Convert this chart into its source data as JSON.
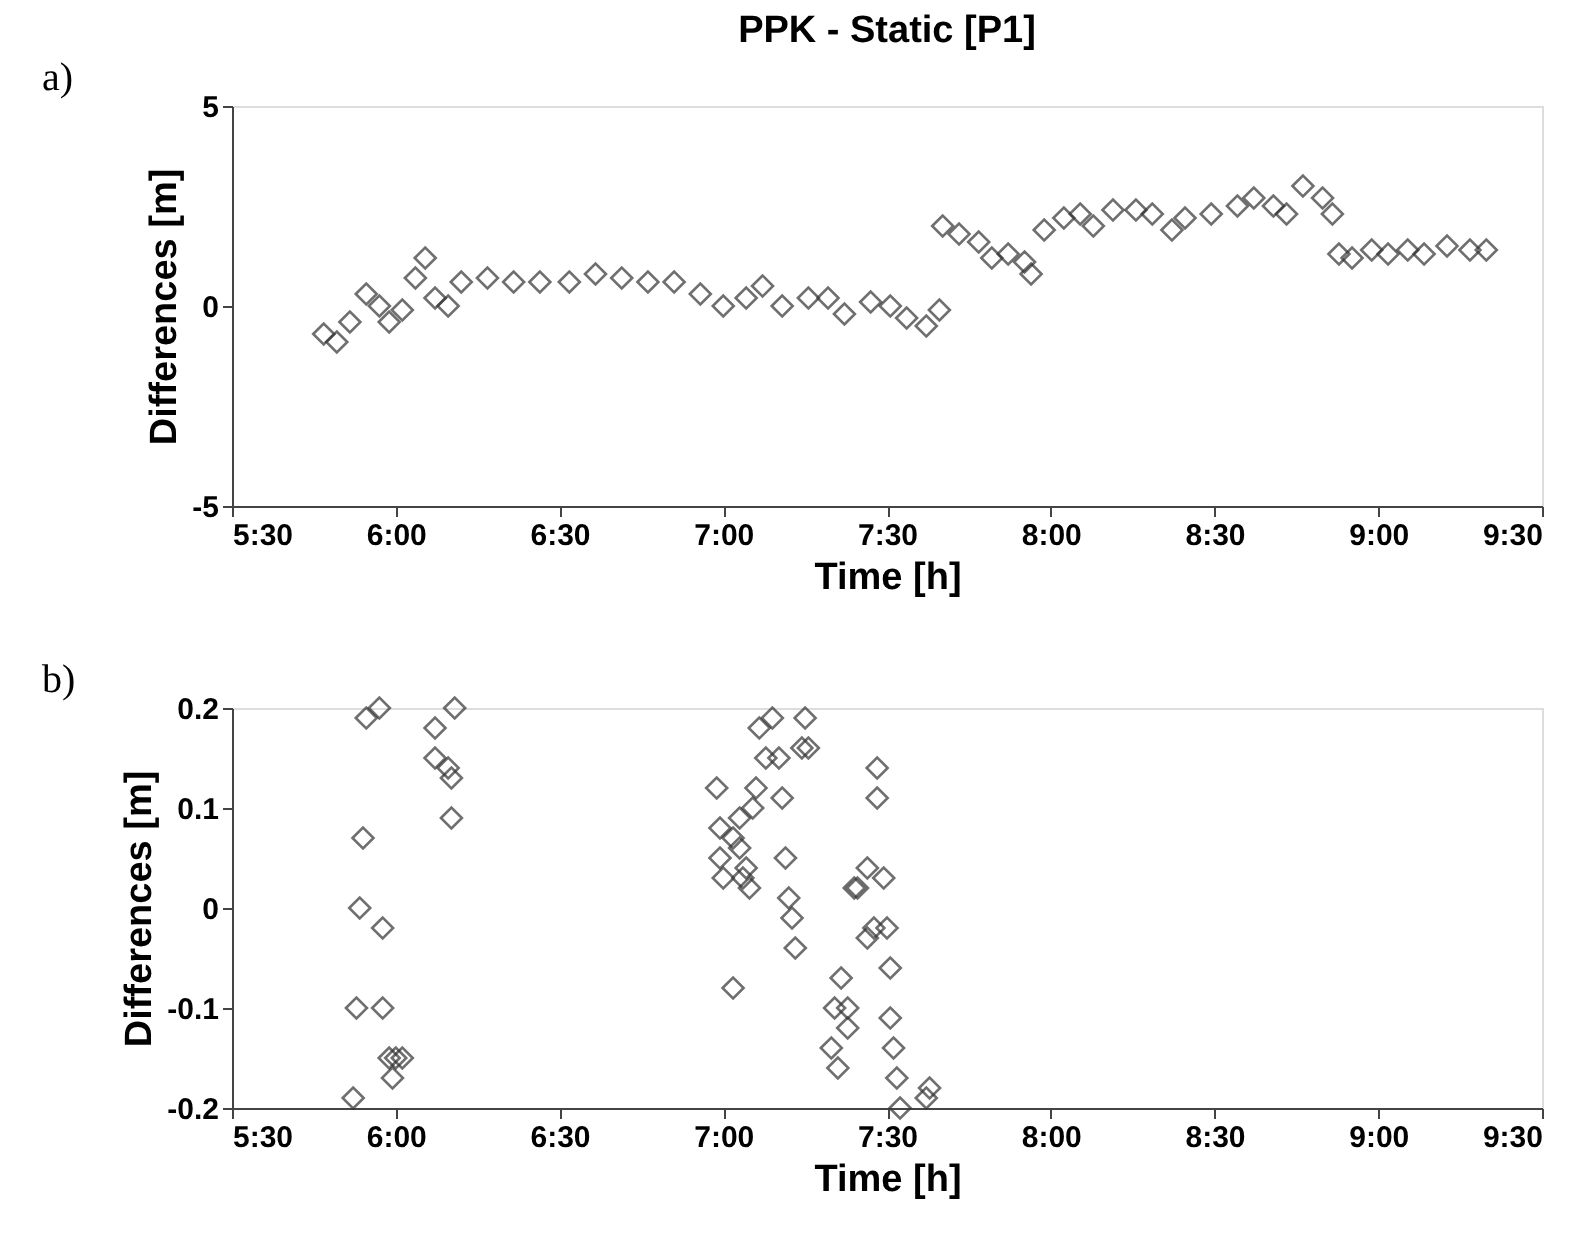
{
  "chart_data": [
    {
      "type": "scatter",
      "title": "PPK - Static [P1]",
      "xlabel": "Time [h]",
      "ylabel": "Differences [m]",
      "annotations": [
        "a)"
      ],
      "marker": "diamond",
      "grid": false,
      "xlim": [
        5.5,
        9.5
      ],
      "xticks": [
        {
          "value": 5.5,
          "label": "5:30"
        },
        {
          "value": 6,
          "label": "6:00"
        },
        {
          "value": 6.5,
          "label": "6:30"
        },
        {
          "value": 7,
          "label": "7:00"
        },
        {
          "value": 7.5,
          "label": "7:30"
        },
        {
          "value": 8,
          "label": "8:00"
        },
        {
          "value": 8.5,
          "label": "8:30"
        },
        {
          "value": 9,
          "label": "9:00"
        },
        {
          "value": 9.5,
          "label": "9:30"
        }
      ],
      "ylim": [
        -5,
        5
      ],
      "yticks": [
        -5,
        0,
        5
      ],
      "series": [
        {
          "color": "#333333",
          "x": [
            5.78,
            5.82,
            5.86,
            5.91,
            5.95,
            5.98,
            6.02,
            6.06,
            6.09,
            6.12,
            6.16,
            6.2,
            6.28,
            6.36,
            6.44,
            6.53,
            6.61,
            6.69,
            6.77,
            6.85,
            6.93,
            7.0,
            7.07,
            7.12,
            7.18,
            7.26,
            7.32,
            7.37,
            7.45,
            7.51,
            7.56,
            7.62,
            7.66,
            7.67,
            7.72,
            7.78,
            7.82,
            7.87,
            7.92,
            7.94,
            7.98,
            8.04,
            8.09,
            8.13,
            8.19,
            8.26,
            8.31,
            8.37,
            8.41,
            8.49,
            8.57,
            8.62,
            8.68,
            8.72,
            8.77,
            8.83,
            8.86,
            8.88,
            8.92,
            8.98,
            9.03,
            9.09,
            9.14,
            9.21,
            9.28,
            9.33
          ],
          "values": [
            -0.7,
            -0.9,
            -0.4,
            0.3,
            0.0,
            -0.4,
            -0.1,
            0.7,
            1.2,
            0.2,
            0.0,
            0.6,
            0.7,
            0.6,
            0.6,
            0.6,
            0.8,
            0.7,
            0.6,
            0.6,
            0.3,
            0.0,
            0.2,
            0.5,
            0.0,
            0.2,
            0.2,
            -0.2,
            0.1,
            0.0,
            -0.3,
            -0.5,
            -0.1,
            2.0,
            1.8,
            1.6,
            1.2,
            1.3,
            1.1,
            0.8,
            1.9,
            2.2,
            2.3,
            2.0,
            2.4,
            2.4,
            2.3,
            1.9,
            2.2,
            2.3,
            2.5,
            2.7,
            2.5,
            2.3,
            3.0,
            2.7,
            2.3,
            1.3,
            1.2,
            1.4,
            1.3,
            1.4,
            1.3,
            1.5,
            1.4,
            1.4
          ]
        }
      ]
    },
    {
      "type": "scatter",
      "xlabel": "Time [h]",
      "ylabel": "Differences [m]",
      "annotations": [
        "b)"
      ],
      "marker": "diamond",
      "grid": false,
      "xlim": [
        5.5,
        9.5
      ],
      "xticks": [
        {
          "value": 5.5,
          "label": "5:30"
        },
        {
          "value": 6,
          "label": "6:00"
        },
        {
          "value": 6.5,
          "label": "6:30"
        },
        {
          "value": 7,
          "label": "7:00"
        },
        {
          "value": 7.5,
          "label": "7:30"
        },
        {
          "value": 8,
          "label": "8:00"
        },
        {
          "value": 8.5,
          "label": "8:30"
        },
        {
          "value": 9,
          "label": "9:00"
        },
        {
          "value": 9.5,
          "label": "9:30"
        }
      ],
      "ylim": [
        -0.2,
        0.2
      ],
      "yticks": [
        -0.2,
        -0.1,
        0,
        0.1,
        0.2
      ],
      "series": [
        {
          "color": "#333333",
          "x": [
            5.91,
            5.95,
            5.9,
            5.89,
            5.96,
            5.88,
            5.96,
            5.87,
            5.98,
            6.0,
            5.99,
            6.02,
            6.12,
            6.18,
            6.12,
            6.16,
            6.17,
            6.17,
            6.98,
            6.99,
            6.99,
            7.0,
            7.03,
            7.05,
            7.06,
            7.07,
            7.08,
            7.05,
            7.09,
            7.1,
            7.11,
            7.15,
            7.13,
            7.03,
            7.17,
            7.18,
            7.19,
            7.2,
            7.21,
            7.22,
            7.25,
            7.24,
            7.26,
            7.36,
            7.34,
            7.33,
            7.35,
            7.38,
            7.38,
            7.4,
            7.41,
            7.44,
            7.44,
            7.46,
            7.47,
            7.47,
            7.49,
            7.5,
            7.51,
            7.51,
            7.52,
            7.53,
            7.54,
            7.62,
            7.63
          ],
          "values": [
            0.19,
            0.2,
            0.07,
            0.0,
            -0.02,
            -0.1,
            -0.1,
            -0.19,
            -0.15,
            -0.15,
            -0.17,
            -0.15,
            0.18,
            0.2,
            0.15,
            0.14,
            0.13,
            0.09,
            0.12,
            0.08,
            0.05,
            0.03,
            0.07,
            0.06,
            0.03,
            0.04,
            0.02,
            0.09,
            0.1,
            0.12,
            0.18,
            0.19,
            0.15,
            -0.08,
            0.15,
            0.11,
            0.05,
            0.01,
            -0.01,
            -0.04,
            0.19,
            0.16,
            0.16,
            -0.07,
            -0.1,
            -0.14,
            -0.16,
            -0.1,
            -0.12,
            0.02,
            0.02,
            0.04,
            -0.03,
            -0.02,
            0.14,
            0.11,
            0.03,
            -0.02,
            -0.06,
            -0.11,
            -0.14,
            -0.17,
            -0.2,
            -0.19,
            -0.18
          ]
        }
      ]
    }
  ]
}
